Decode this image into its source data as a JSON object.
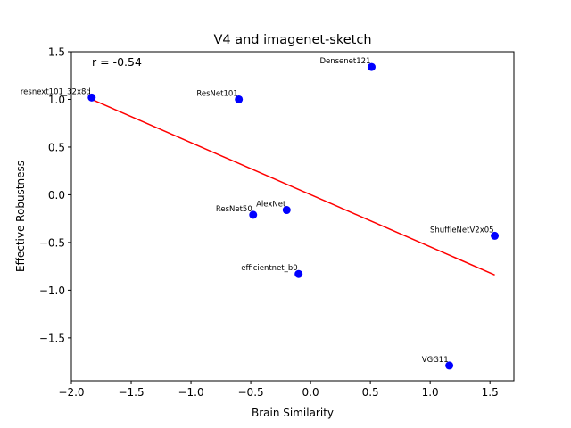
{
  "chart_data": {
    "type": "scatter",
    "title": "V4 and imagenet-sketch",
    "xlabel": "Brain Similarity",
    "ylabel": "Effective Robustness",
    "xlim": [
      -2.0,
      1.7
    ],
    "ylim": [
      -1.95,
      1.5
    ],
    "xticks": [
      -2.0,
      -1.5,
      -1.0,
      -0.5,
      0.0,
      0.5,
      1.0,
      1.5
    ],
    "xtick_labels": [
      "−2.0",
      "−1.5",
      "−1.0",
      "−0.5",
      "0.0",
      "0.5",
      "1.0",
      "1.5"
    ],
    "yticks": [
      -1.5,
      -1.0,
      -0.5,
      0.0,
      0.5,
      1.0,
      1.5
    ],
    "ytick_labels": [
      "−1.5",
      "−1.0",
      "−0.5",
      "0.0",
      "0.5",
      "1.0",
      "1.5"
    ],
    "annotation": "r = -0.54",
    "grid": false,
    "point_color": "#0000ff",
    "line_color": "#ff0000",
    "points": [
      {
        "label": "resnext101_32x8d",
        "x": -1.83,
        "y": 1.02
      },
      {
        "label": "ResNet101",
        "x": -0.6,
        "y": 1.0
      },
      {
        "label": "Densenet121",
        "x": 0.51,
        "y": 1.34
      },
      {
        "label": "AlexNet",
        "x": -0.2,
        "y": -0.16
      },
      {
        "label": "ResNet50",
        "x": -0.48,
        "y": -0.21
      },
      {
        "label": "efficientnet_b0",
        "x": -0.1,
        "y": -0.83
      },
      {
        "label": "ShuffleNetV2x05",
        "x": 1.54,
        "y": -0.43
      },
      {
        "label": "VGG11",
        "x": 1.16,
        "y": -1.79
      }
    ],
    "fit_line": {
      "x": [
        -1.83,
        1.54
      ],
      "y": [
        1.0,
        -0.84
      ]
    }
  }
}
